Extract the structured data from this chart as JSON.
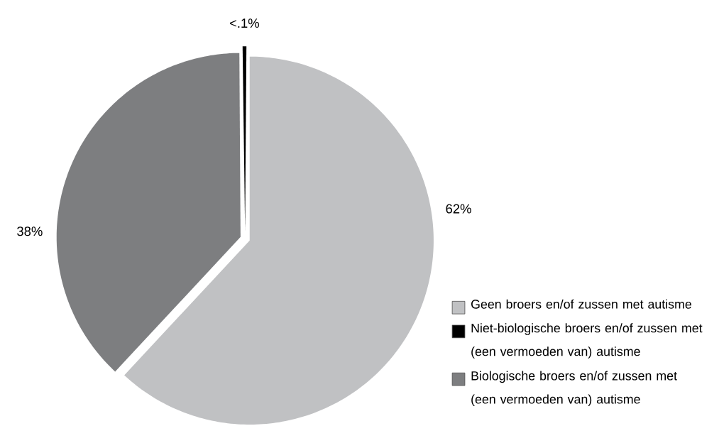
{
  "chart_data": {
    "type": "pie",
    "categories": [
      "Geen broers en/of zussen met autisme",
      "Niet-biologische broers en/of zussen met (een vermoeden van) autisme",
      "Biologische broers en/of zussen met (een vermoeden van) autisme"
    ],
    "values": [
      62,
      0.1,
      38
    ],
    "value_labels": [
      "62%",
      "<.1%",
      "38%"
    ],
    "colors": [
      "#c0c1c3",
      "#000000",
      "#7d7e80"
    ],
    "legend": "bottom right"
  }
}
